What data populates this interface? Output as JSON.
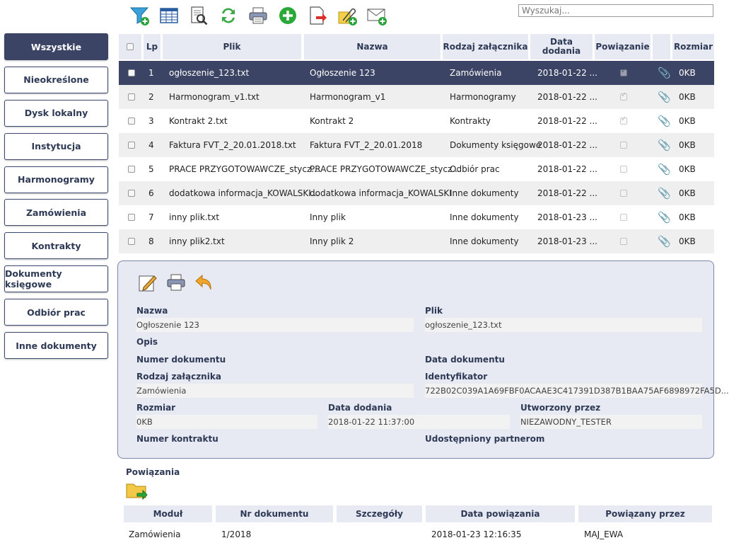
{
  "toolbar": {
    "icons": [
      "filter-add-icon",
      "table-icon",
      "search-document-icon",
      "refresh-icon",
      "print-icon",
      "add-icon",
      "export-icon",
      "attach-add-icon",
      "mail-add-icon"
    ]
  },
  "search": {
    "placeholder": "Wyszukaj..."
  },
  "sidebar": {
    "items": [
      {
        "label": "Wszystkie"
      },
      {
        "label": "Nieokreślone"
      },
      {
        "label": "Dysk lokalny"
      },
      {
        "label": "Instytucja"
      },
      {
        "label": "Harmonogramy"
      },
      {
        "label": "Zamówienia"
      },
      {
        "label": "Kontrakty"
      },
      {
        "label": "Dokumenty księgowe"
      },
      {
        "label": "Odbiór prac"
      },
      {
        "label": "Inne dokumenty"
      }
    ]
  },
  "table": {
    "headers": {
      "lp": "Lp",
      "plik": "Plik",
      "nazwa": "Nazwa",
      "rodzaj": "Rodzaj załącznika",
      "data": "Data dodania",
      "powiazanie": "Powiązanie",
      "rozmiar": "Rozmiar"
    },
    "rows": [
      {
        "lp": "1",
        "plik": "ogłoszenie_123.txt",
        "nazwa": "Ogłoszenie 123",
        "rodzaj": "Zamówienia",
        "data": "2018-01-22 ...",
        "linked": true,
        "rozmiar": "0KB"
      },
      {
        "lp": "2",
        "plik": "Harmonogram_v1.txt",
        "nazwa": "Harmonogram_v1",
        "rodzaj": "Harmonogramy",
        "data": "2018-01-22 ...",
        "linked": true,
        "rozmiar": "0KB"
      },
      {
        "lp": "3",
        "plik": "Kontrakt 2.txt",
        "nazwa": "Kontrakt 2",
        "rodzaj": "Kontrakty",
        "data": "2018-01-22 ...",
        "linked": true,
        "rozmiar": "0KB"
      },
      {
        "lp": "4",
        "plik": "Faktura FVT_2_20.01.2018.txt",
        "nazwa": "Faktura FVT_2_20.01.2018",
        "rodzaj": "Dokumenty księgowe",
        "data": "2018-01-22 ...",
        "linked": false,
        "rozmiar": "0KB"
      },
      {
        "lp": "5",
        "plik": "PRACE PRZYGOTOWAWCZE_stycz...",
        "nazwa": "PRACE PRZYGOTOWAWCZE_stycz...",
        "rodzaj": "Odbiór prac",
        "data": "2018-01-22 ...",
        "linked": false,
        "rozmiar": "0KB"
      },
      {
        "lp": "6",
        "plik": "dodatkowa informacja_KOWALSKI...",
        "nazwa": "dodatkowa informacja_KOWALSKI",
        "rodzaj": "Inne dokumenty",
        "data": "2018-01-22 ...",
        "linked": false,
        "rozmiar": "0KB"
      },
      {
        "lp": "7",
        "plik": "inny plik.txt",
        "nazwa": "Inny plik",
        "rodzaj": "Inne dokumenty",
        "data": "2018-01-23 ...",
        "linked": false,
        "rozmiar": "0KB"
      },
      {
        "lp": "8",
        "plik": "inny plik2.txt",
        "nazwa": "Inny plik 2",
        "rodzaj": "Inne dokumenty",
        "data": "2018-01-23 ...",
        "linked": false,
        "rozmiar": "0KB"
      }
    ]
  },
  "detail": {
    "tools": [
      "edit-icon",
      "print-icon",
      "back-icon"
    ],
    "nazwa_label": "Nazwa",
    "nazwa": "Ogłoszenie 123",
    "plik_label": "Plik",
    "plik": "ogłoszenie_123.txt",
    "opis_label": "Opis",
    "numer_dokumentu_label": "Numer dokumentu",
    "data_dokumentu_label": "Data dokumentu",
    "rodzaj_label": "Rodzaj załącznika",
    "rodzaj": "Zamówienia",
    "identyfikator_label": "Identyfikator",
    "identyfikator": "722B02C039A1A69FBF0ACAAE3C417391D387B1BAA75AF6898972FA5D...",
    "rozmiar_label": "Rozmiar",
    "rozmiar": "0KB",
    "data_dodania_label": "Data dodania",
    "data_dodania": "2018-01-22 11:37:00",
    "utworzony_label": "Utworzony przez",
    "utworzony": "NIEZAWODNY_TESTER",
    "numer_kontraktu_label": "Numer kontraktu",
    "udostepniony_label": "Udostępniony partnerom"
  },
  "relations": {
    "title": "Powiązania",
    "headers": {
      "modul": "Moduł",
      "nr": "Nr dokumentu",
      "szczegoly": "Szczegóły",
      "data": "Data powiązania",
      "przez": "Powiązany przez"
    },
    "rows": [
      {
        "modul": "Zamówienia",
        "nr": "1/2018",
        "szczegoly": "",
        "data": "2018-01-23 12:16:35",
        "przez": "MAJ_EWA"
      }
    ]
  }
}
